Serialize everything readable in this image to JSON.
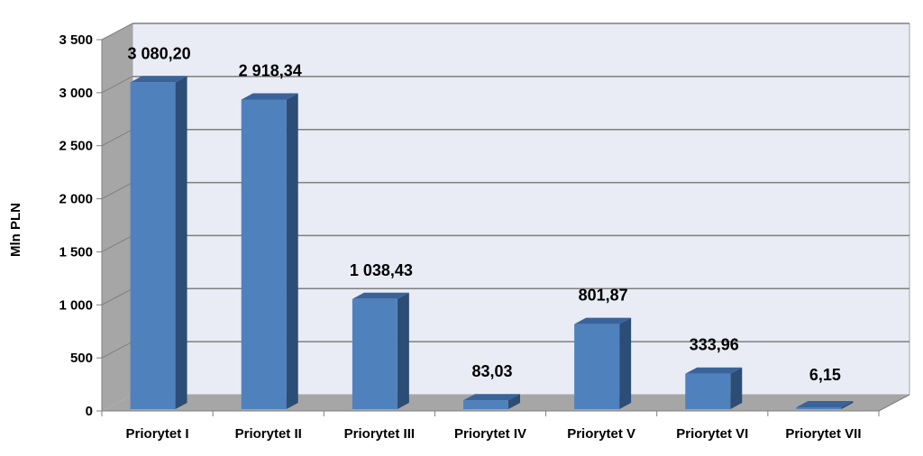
{
  "chart_data": {
    "type": "bar",
    "title": "",
    "xlabel": "",
    "ylabel": "Mln PLN",
    "categories": [
      "Priorytet I",
      "Priorytet II",
      "Priorytet III",
      "Priorytet IV",
      "Priorytet V",
      "Priorytet VI",
      "Priorytet VII"
    ],
    "values": [
      3080.2,
      2918.34,
      1038.43,
      83.03,
      801.87,
      333.96,
      6.15
    ],
    "data_labels": [
      "3 080,20",
      "2 918,34",
      "1 038,43",
      "83,03",
      "801,87",
      "333,96",
      "6,15"
    ],
    "ylim": [
      0,
      3500
    ],
    "yticks": [
      0,
      500,
      1000,
      1500,
      2000,
      2500,
      3000,
      3500
    ],
    "ytick_labels": [
      "0",
      "500",
      "1 000",
      "1 500",
      "2 000",
      "2 500",
      "3 000",
      "3 500"
    ],
    "grid": true,
    "legend": "none",
    "style": "3d-column"
  },
  "colors": {
    "bar_front": "#4f81bd",
    "bar_side": "#2c4d75",
    "bar_top": "#3a639a",
    "wall_back": "#e9ecf5",
    "wall_side": "#a6a6a6",
    "floor": "#a6a6a6",
    "gridline": "#7f7f7f"
  }
}
